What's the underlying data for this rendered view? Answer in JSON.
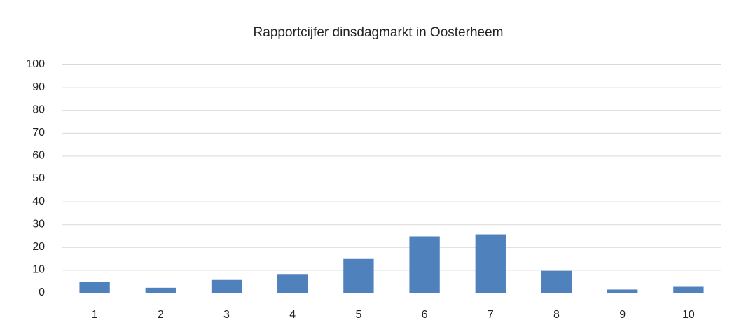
{
  "chart_data": {
    "type": "bar",
    "title": "Rapportcijfer dinsdagmarkt in Oosterheem",
    "categories": [
      "1",
      "2",
      "3",
      "4",
      "5",
      "6",
      "7",
      "8",
      "9",
      "10"
    ],
    "values": [
      4.8,
      2.2,
      5.6,
      8.2,
      14.8,
      24.7,
      25.6,
      9.6,
      1.4,
      2.6
    ],
    "color": "#4f81bd",
    "ylim": [
      0,
      100
    ],
    "yticks": [
      0,
      10,
      20,
      30,
      40,
      50,
      60,
      70,
      80,
      90,
      100
    ],
    "grid": true
  }
}
